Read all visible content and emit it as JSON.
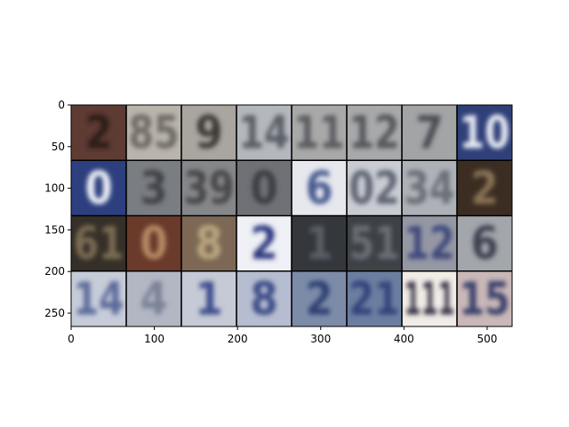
{
  "figure": {
    "type": "image-grid",
    "rows": 4,
    "cols": 8,
    "image_extent": {
      "x": [
        0,
        530
      ],
      "y": [
        266,
        0
      ]
    },
    "x_ticks": [
      {
        "value": 0,
        "label": "0"
      },
      {
        "value": 100,
        "label": "100"
      },
      {
        "value": 200,
        "label": "200"
      },
      {
        "value": 300,
        "label": "300"
      },
      {
        "value": 400,
        "label": "400"
      },
      {
        "value": 500,
        "label": "500"
      }
    ],
    "y_ticks": [
      {
        "value": 0,
        "label": "0"
      },
      {
        "value": 50,
        "label": "50"
      },
      {
        "value": 100,
        "label": "100"
      },
      {
        "value": 150,
        "label": "150"
      },
      {
        "value": 200,
        "label": "200"
      },
      {
        "value": 250,
        "label": "250"
      }
    ],
    "grid_line_color": "#000000",
    "tiles": [
      {
        "bg": "#5e3b33",
        "fg": "#2a1a17",
        "digits": "2"
      },
      {
        "bg": "#b9b5ad",
        "fg": "#6e6a64",
        "digits": "85"
      },
      {
        "bg": "#a9a59f",
        "fg": "#3d3935",
        "digits": "9"
      },
      {
        "bg": "#b4b8bd",
        "fg": "#5a5e66",
        "digits": "14"
      },
      {
        "bg": "#a8a9a8",
        "fg": "#5b5c60",
        "digits": "11"
      },
      {
        "bg": "#a7a9aa",
        "fg": "#54565c",
        "digits": "12"
      },
      {
        "bg": "#a2a4a6",
        "fg": "#4b4d52",
        "digits": "7"
      },
      {
        "bg": "#2f3f78",
        "fg": "#e8ecf4",
        "digits": "10"
      },
      {
        "bg": "#2d3f7e",
        "fg": "#eef1f7",
        "digits": "0"
      },
      {
        "bg": "#7a7d82",
        "fg": "#3f4247",
        "digits": "3"
      },
      {
        "bg": "#86878a",
        "fg": "#46464a",
        "digits": "39"
      },
      {
        "bg": "#6f7176",
        "fg": "#3b3d42",
        "digits": "0"
      },
      {
        "bg": "#e6e8ee",
        "fg": "#4a5a90",
        "digits": "6"
      },
      {
        "bg": "#c9ccd3",
        "fg": "#5f6472",
        "digits": "02"
      },
      {
        "bg": "#aeb2b8",
        "fg": "#6a6e76",
        "digits": "34"
      },
      {
        "bg": "#3b2d22",
        "fg": "#8a7356",
        "digits": "2"
      },
      {
        "bg": "#352f29",
        "fg": "#7e6d55",
        "digits": "61"
      },
      {
        "bg": "#6a3a2a",
        "fg": "#b58c66",
        "digits": "0"
      },
      {
        "bg": "#7c6855",
        "fg": "#bca67f",
        "digits": "8"
      },
      {
        "bg": "#eef0f5",
        "fg": "#2e3a80",
        "digits": "2"
      },
      {
        "bg": "#34373c",
        "fg": "#5b5f66",
        "digits": "1"
      },
      {
        "bg": "#3e4146",
        "fg": "#6b6f76",
        "digits": "51"
      },
      {
        "bg": "#9598a3",
        "fg": "#3f4a7c",
        "digits": "12"
      },
      {
        "bg": "#a3a6aa",
        "fg": "#3c4050",
        "digits": "6"
      },
      {
        "bg": "#c7ccd9",
        "fg": "#5c6a9a",
        "digits": "14"
      },
      {
        "bg": "#b2b7c3",
        "fg": "#7a8296",
        "digits": "4"
      },
      {
        "bg": "#c5cad6",
        "fg": "#3d4d8c",
        "digits": "1"
      },
      {
        "bg": "#b6bdd0",
        "fg": "#3a4b86",
        "digits": "8"
      },
      {
        "bg": "#7c8ca8",
        "fg": "#2f3f73",
        "digits": "2"
      },
      {
        "bg": "#6c7ea0",
        "fg": "#33437a",
        "digits": "21"
      },
      {
        "bg": "#f1ece6",
        "fg": "#3a3548",
        "digits": "111"
      },
      {
        "bg": "#c9b8b8",
        "fg": "#3a3f6a",
        "digits": "15"
      }
    ]
  }
}
